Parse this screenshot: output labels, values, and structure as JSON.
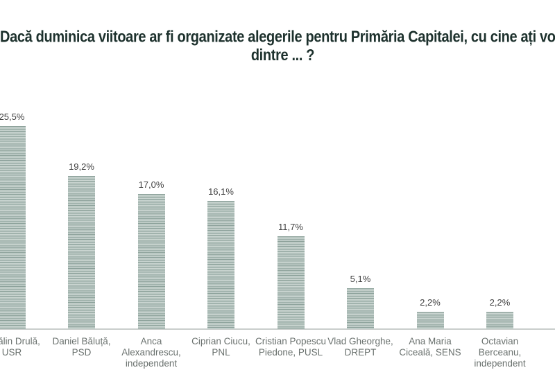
{
  "chart_data": {
    "type": "bar",
    "title": "Dacă duminica viitoare ar fi organizate alegerile pentru Primăria Capitalei, cu cine ați vota dintre ... ?",
    "title_lines": [
      "Dacă duminica viitoare ar fi organizate alegerile pentru Primăria Capitalei, cu cine ați vota",
      "dintre ... ?"
    ],
    "categories": [
      "Cătălin Drulă, USR",
      "Daniel Băluță, PSD",
      "Anca Alexandrescu, independent",
      "Ciprian Ciucu, PNL",
      "Cristian Popescu Piedone, PUSL",
      "Vlad Gheorghe, DREPT",
      "Ana Maria Ciceală, SENS",
      "Octavian Berceanu, independent"
    ],
    "values": [
      25.5,
      19.2,
      17.0,
      16.1,
      11.7,
      5.1,
      2.2,
      2.2
    ],
    "value_labels": [
      "25,5%",
      "19,2%",
      "17,0%",
      "16,1%",
      "11,7%",
      "5,1%",
      "2,2%",
      "2,2%"
    ],
    "xlabel": "",
    "ylabel": "",
    "ylim": [
      0,
      26
    ],
    "grid": false,
    "legend": "none",
    "colors": {
      "background": "#ffffff",
      "title": "#1d312d",
      "bar_base": "#b3c2bd",
      "bar_stripe_dark": "#8da29b",
      "bar_stripe_light": "#c9d4d0",
      "value_label": "#414141",
      "category_label": "#6a716e",
      "axis_line": "#c9cecb"
    }
  }
}
